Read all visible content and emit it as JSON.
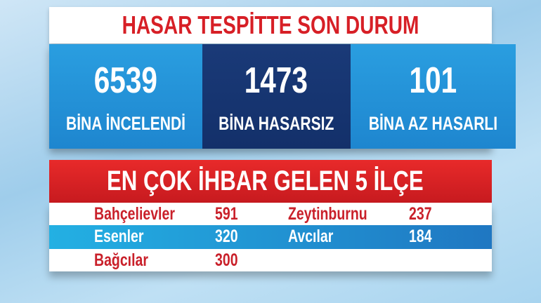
{
  "title": "HASAR TESPİTTE SON DURUM",
  "stats": [
    {
      "value": "6539",
      "label": "BİNA İNCELENDİ"
    },
    {
      "value": "1473",
      "label": "BİNA HASARSIZ"
    },
    {
      "value": "101",
      "label": "BİNA AZ HASARLI"
    }
  ],
  "districts_title": "EN ÇOK İHBAR GELEN 5 İLÇE",
  "districts": [
    {
      "name": "Bahçelievler",
      "count": "591"
    },
    {
      "name": "Esenler",
      "count": "320"
    },
    {
      "name": "Bağcılar",
      "count": "300"
    },
    {
      "name": "Zeytinburnu",
      "count": "237"
    },
    {
      "name": "Avcılar",
      "count": "184"
    }
  ],
  "colors": {
    "red": "#d71f26",
    "blue": "#1e86cf",
    "navy": "#13306a"
  }
}
